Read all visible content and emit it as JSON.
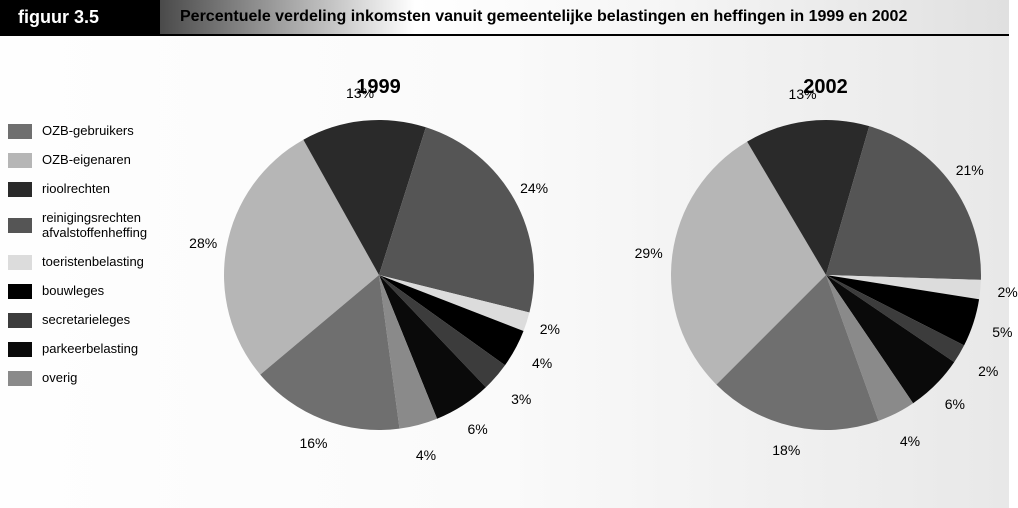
{
  "header": {
    "tag": "figuur 3.5",
    "title": "Percentuele verdeling inkomsten vanuit gemeentelijke belastingen en heffingen in 1999 en 2002"
  },
  "legend": [
    {
      "label": "OZB-gebruikers",
      "color": "#6f6f6f"
    },
    {
      "label": "OZB-eigenaren",
      "color": "#b6b6b6"
    },
    {
      "label": "rioolrechten",
      "color": "#2a2a2a"
    },
    {
      "label": "reinigingsrechten\nafvalstoffenheffing",
      "color": "#555555"
    },
    {
      "label": "toeristenbelasting",
      "color": "#dcdcdc"
    },
    {
      "label": "bouwleges",
      "color": "#000000"
    },
    {
      "label": "secretarieleges",
      "color": "#3c3c3c"
    },
    {
      "label": "parkeerbelasting",
      "color": "#0a0a0a"
    },
    {
      "label": "overig",
      "color": "#8a8a8a"
    }
  ],
  "charts": [
    {
      "title": "1999",
      "radius": 155,
      "start_angle_deg": -130,
      "slices": [
        {
          "value": 28,
          "label": "28%",
          "color": "#b6b6b6",
          "label_r": 1.15
        },
        {
          "value": 13,
          "label": "13%",
          "color": "#2a2a2a",
          "label_r": 1.18
        },
        {
          "value": 24,
          "label": "24%",
          "color": "#555555",
          "label_r": 1.15
        },
        {
          "value": 2,
          "label": "2%",
          "color": "#dcdcdc",
          "label_r": 1.16
        },
        {
          "value": 4,
          "label": "4%",
          "color": "#000000",
          "label_r": 1.2
        },
        {
          "value": 3,
          "label": "3%",
          "color": "#3c3c3c",
          "label_r": 1.22
        },
        {
          "value": 6,
          "label": "6%",
          "color": "#0a0a0a",
          "label_r": 1.18
        },
        {
          "value": 4,
          "label": "4%",
          "color": "#8a8a8a",
          "label_r": 1.2
        },
        {
          "value": 16,
          "label": "16%",
          "color": "#6f6f6f",
          "label_r": 1.16
        }
      ]
    },
    {
      "title": "2002",
      "radius": 155,
      "start_angle_deg": -135,
      "slices": [
        {
          "value": 29,
          "label": "29%",
          "color": "#b6b6b6",
          "label_r": 1.15
        },
        {
          "value": 13,
          "label": "13%",
          "color": "#2a2a2a",
          "label_r": 1.18
        },
        {
          "value": 21,
          "label": "21%",
          "color": "#555555",
          "label_r": 1.15
        },
        {
          "value": 2,
          "label": "2%",
          "color": "#dcdcdc",
          "label_r": 1.18
        },
        {
          "value": 5,
          "label": "5%",
          "color": "#000000",
          "label_r": 1.2
        },
        {
          "value": 2,
          "label": "2%",
          "color": "#3c3c3c",
          "label_r": 1.22
        },
        {
          "value": 6,
          "label": "6%",
          "color": "#0a0a0a",
          "label_r": 1.18
        },
        {
          "value": 4,
          "label": "4%",
          "color": "#8a8a8a",
          "label_r": 1.2
        },
        {
          "value": 18,
          "label": "18%",
          "color": "#6f6f6f",
          "label_r": 1.16
        }
      ]
    }
  ]
}
